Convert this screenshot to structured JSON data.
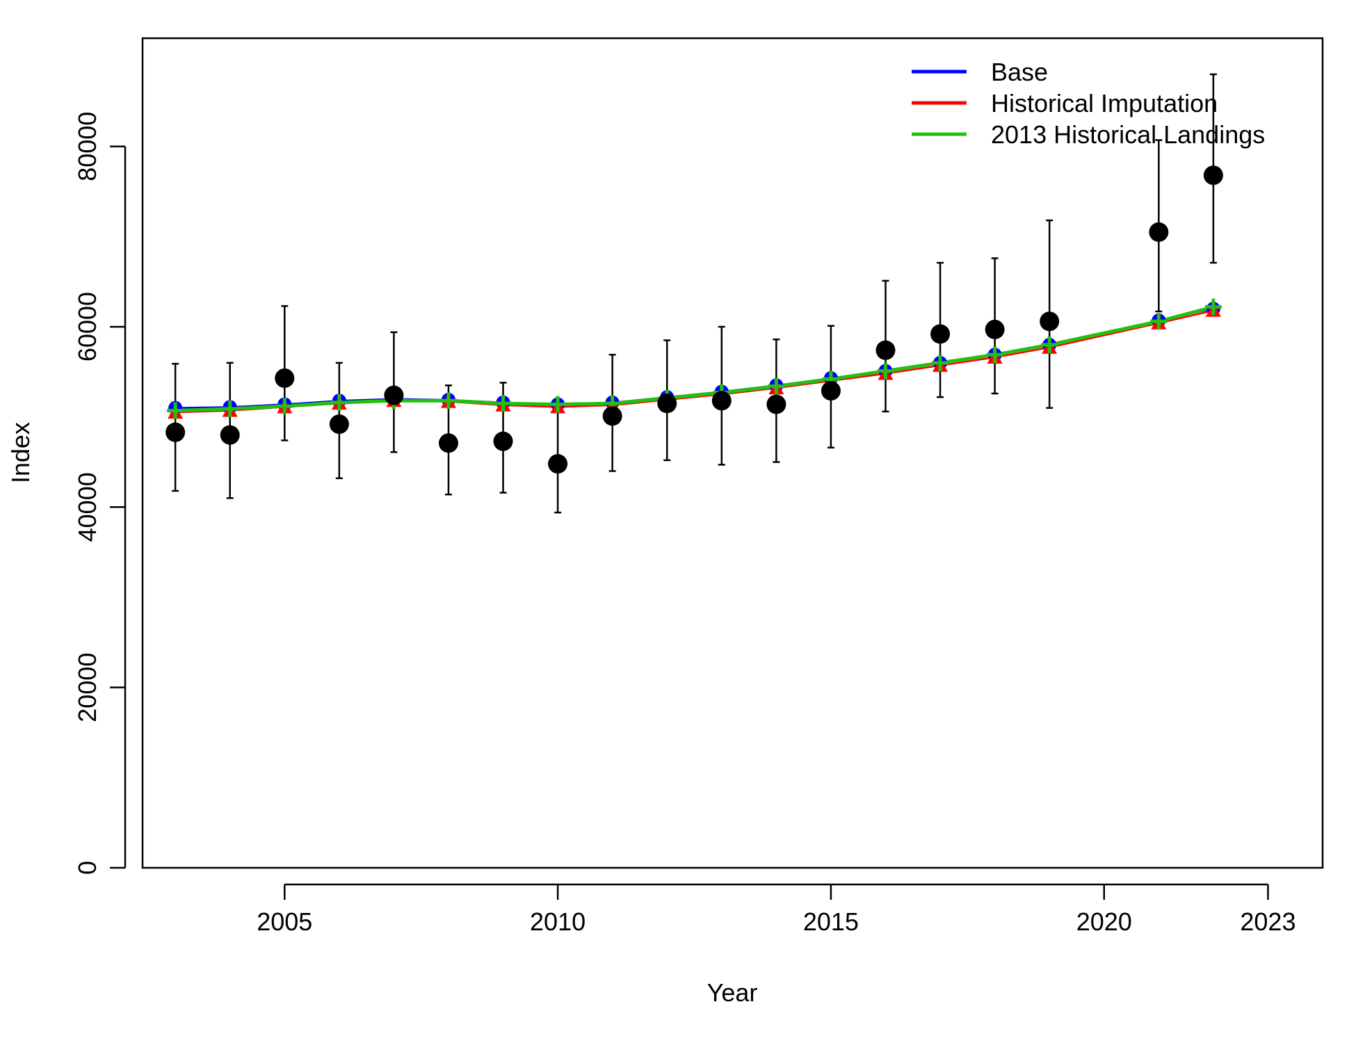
{
  "chart_data": {
    "type": "line",
    "title": "",
    "xlabel": "Year",
    "ylabel": "Index",
    "xlim": [
      2002.4,
      2024.0
    ],
    "ylim": [
      0,
      92000
    ],
    "x_ticks": [
      2005,
      2010,
      2015,
      2020,
      2023
    ],
    "x_tick_labels": [
      "2005",
      "2010",
      "2015",
      "2020",
      "2023"
    ],
    "y_ticks": [
      0,
      20000,
      40000,
      60000,
      80000
    ],
    "y_tick_labels": [
      "0",
      "20000",
      "40000",
      "60000",
      "80000"
    ],
    "grid": false,
    "legend_position": "top-right",
    "observed": {
      "x": [
        2003,
        2004,
        2005,
        2006,
        2007,
        2008,
        2009,
        2010,
        2011,
        2012,
        2013,
        2014,
        2015,
        2016,
        2017,
        2018,
        2019,
        2021,
        2022
      ],
      "y": [
        48300,
        48000,
        54300,
        49200,
        52400,
        47100,
        47300,
        44800,
        50100,
        51500,
        51800,
        51400,
        52900,
        57400,
        59200,
        59700,
        60600,
        70500,
        76800
      ],
      "lower": [
        41800,
        41000,
        47400,
        43200,
        46100,
        41400,
        41600,
        39400,
        44000,
        45200,
        44700,
        45000,
        46600,
        50600,
        52200,
        52600,
        51000,
        61700,
        67100
      ],
      "upper": [
        55900,
        56000,
        62300,
        56000,
        59400,
        53500,
        53800,
        51200,
        56900,
        58500,
        60000,
        58600,
        60100,
        65100,
        67100,
        67600,
        71800,
        80700,
        88000
      ]
    },
    "series": [
      {
        "name": "Base",
        "color": "#0000ff",
        "x": [
          2003,
          2004,
          2005,
          2006,
          2007,
          2008,
          2009,
          2010,
          2011,
          2012,
          2013,
          2014,
          2015,
          2016,
          2017,
          2018,
          2019,
          2021,
          2022
        ],
        "values": [
          51000,
          51100,
          51400,
          51800,
          52000,
          51900,
          51600,
          51400,
          51600,
          52200,
          52800,
          53500,
          54300,
          55100,
          56000,
          56900,
          58000,
          60700,
          62000
        ]
      },
      {
        "name": "Historical Imputation",
        "color": "#ff0000",
        "x": [
          2003,
          2004,
          2005,
          2006,
          2007,
          2008,
          2009,
          2010,
          2011,
          2012,
          2013,
          2014,
          2015,
          2016,
          2017,
          2018,
          2019,
          2021,
          2022
        ],
        "values": [
          50500,
          50700,
          51100,
          51500,
          51800,
          51700,
          51300,
          51100,
          51300,
          51900,
          52500,
          53200,
          54000,
          54800,
          55700,
          56600,
          57700,
          60400,
          61800
        ]
      },
      {
        "name": "2013 Historical Landings",
        "color": "#22c010",
        "x": [
          2003,
          2004,
          2005,
          2006,
          2007,
          2008,
          2009,
          2010,
          2011,
          2012,
          2013,
          2014,
          2015,
          2016,
          2017,
          2018,
          2019,
          2021,
          2022
        ],
        "values": [
          50700,
          50900,
          51200,
          51600,
          51800,
          51800,
          51500,
          51400,
          51500,
          52100,
          52700,
          53400,
          54200,
          55100,
          56000,
          56900,
          58000,
          60600,
          62200
        ]
      }
    ]
  }
}
